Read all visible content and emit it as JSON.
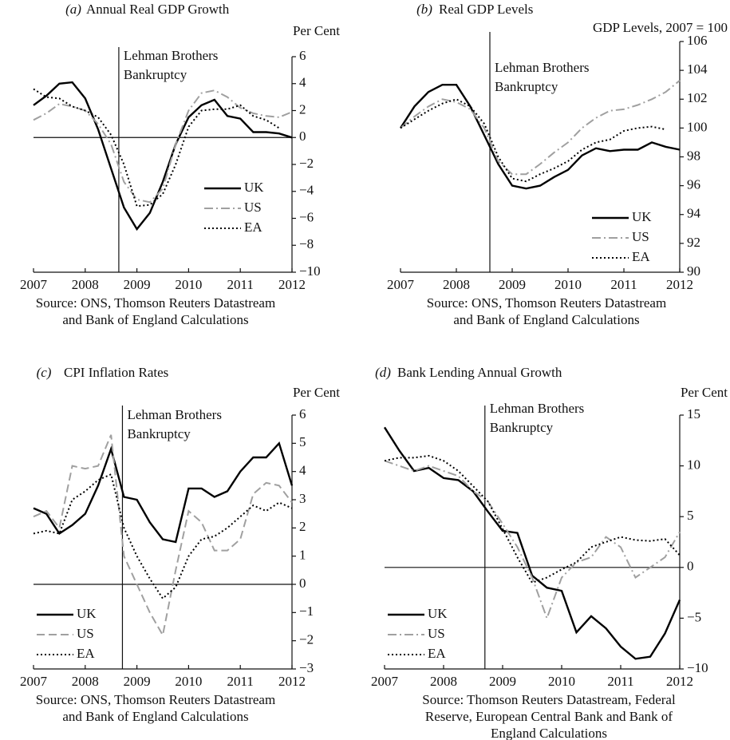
{
  "chart_data": [
    {
      "type": "line",
      "panel": "(a)",
      "title": "Annual Real GDP Growth",
      "y_label": "Per Cent",
      "annotation": [
        "Lehman Brothers",
        "Bankruptcy"
      ],
      "event_x": 2008.65,
      "source": [
        "Source: ONS, Thomson Reuters Datastream",
        "and Bank of England Calculations"
      ],
      "x": [
        2007,
        2007.25,
        2007.5,
        2007.75,
        2008,
        2008.25,
        2008.5,
        2008.75,
        2009,
        2009.25,
        2009.5,
        2009.75,
        2010,
        2010.25,
        2010.5,
        2010.75,
        2011,
        2011.25,
        2011.5,
        2011.75,
        2012
      ],
      "xlim": [
        2007,
        2012
      ],
      "xticks": [
        2007,
        2008,
        2009,
        2010,
        2011,
        2012
      ],
      "ylim": [
        -10,
        6
      ],
      "yticks": [
        6,
        4,
        2,
        0,
        {
          "value": -2,
          "label": "−2"
        },
        {
          "value": -4,
          "label": "−4"
        },
        {
          "value": -6,
          "label": "−6"
        },
        {
          "value": -8,
          "label": "−8"
        },
        {
          "value": -10,
          "label": "−10"
        }
      ],
      "legend": "center right",
      "series": [
        {
          "name": "UK",
          "color": "#000000",
          "dash": "solid",
          "values": [
            2.4,
            3.1,
            4.0,
            4.1,
            2.9,
            0.6,
            -2.3,
            -5.2,
            -6.8,
            -5.6,
            -3.3,
            -0.5,
            1.5,
            2.4,
            2.8,
            1.6,
            1.4,
            0.4,
            0.4,
            0.3,
            0.0
          ]
        },
        {
          "name": "US",
          "color": "#a0a0a0",
          "dash": "dashdot",
          "values": [
            1.3,
            1.8,
            2.5,
            2.3,
            2.0,
            1.0,
            -0.5,
            -3.3,
            -4.6,
            -4.8,
            -3.8,
            -0.5,
            2.0,
            3.3,
            3.5,
            3.0,
            2.2,
            1.8,
            1.6,
            1.5,
            1.9
          ]
        },
        {
          "name": "EA",
          "color": "#000000",
          "dash": "dotted",
          "values": [
            3.6,
            3.0,
            2.9,
            2.3,
            2.0,
            1.5,
            0.2,
            -2.0,
            -5.1,
            -5.0,
            -4.2,
            -2.0,
            0.8,
            2.0,
            2.1,
            2.1,
            2.4,
            1.6,
            1.3,
            0.7,
            null
          ]
        }
      ]
    },
    {
      "type": "line",
      "panel": "(b)",
      "title": "Real GDP Levels",
      "y_label": "GDP Levels, 2007 = 100",
      "annotation": [
        "Lehman Brothers",
        "Bankruptcy"
      ],
      "event_x": 2008.6,
      "source": [
        "Source: ONS, Thomson Reuters Datastream",
        "and Bank of England Calculations"
      ],
      "x": [
        2007,
        2007.25,
        2007.5,
        2007.75,
        2008,
        2008.25,
        2008.5,
        2008.75,
        2009,
        2009.25,
        2009.5,
        2009.75,
        2010,
        2010.25,
        2010.5,
        2010.75,
        2011,
        2011.25,
        2011.5,
        2011.75,
        2012
      ],
      "xlim": [
        2007,
        2012
      ],
      "xticks": [
        2007,
        2008,
        2009,
        2010,
        2011,
        2012
      ],
      "ylim": [
        90,
        106
      ],
      "yticks": [
        106,
        104,
        102,
        100,
        98,
        96,
        94,
        92,
        90
      ],
      "legend": "lower right",
      "series": [
        {
          "name": "UK",
          "color": "#000000",
          "dash": "solid",
          "values": [
            100,
            101.5,
            102.5,
            103,
            103,
            101.5,
            99.5,
            97.5,
            96,
            95.8,
            96,
            96.6,
            97.1,
            98.1,
            98.6,
            98.4,
            98.5,
            98.5,
            99.0,
            98.7,
            98.5
          ]
        },
        {
          "name": "US",
          "color": "#a0a0a0",
          "dash": "dashdot",
          "values": [
            100,
            100.8,
            101.5,
            102,
            101.8,
            101.3,
            100,
            97.7,
            96.8,
            96.8,
            97.5,
            98.3,
            99,
            100,
            100.7,
            101.2,
            101.3,
            101.6,
            102,
            102.5,
            103.3
          ]
        },
        {
          "name": "EA",
          "color": "#000000",
          "dash": "dotted",
          "values": [
            100,
            100.6,
            101.2,
            101.7,
            102,
            101.5,
            100.3,
            98,
            96.5,
            96.3,
            96.8,
            97.2,
            97.7,
            98.5,
            99,
            99.2,
            99.8,
            100,
            100.1,
            99.9,
            null
          ]
        }
      ]
    },
    {
      "type": "line",
      "panel": "(c)",
      "title": "CPI Inflation Rates",
      "y_label": "Per Cent",
      "annotation": [
        "Lehman Brothers",
        "Bankruptcy"
      ],
      "event_x": 2008.72,
      "source": [
        "Source: ONS, Thomson Reuters Datastream",
        "and Bank of England Calculations"
      ],
      "x": [
        2007,
        2007.25,
        2007.5,
        2007.75,
        2008,
        2008.25,
        2008.5,
        2008.75,
        2009,
        2009.25,
        2009.5,
        2009.75,
        2010,
        2010.25,
        2010.5,
        2010.75,
        2011,
        2011.25,
        2011.5,
        2011.75,
        2012
      ],
      "xlim": [
        2007,
        2012
      ],
      "xticks": [
        2007,
        2008,
        2009,
        2010,
        2011,
        2012
      ],
      "ylim": [
        -3,
        6
      ],
      "yticks": [
        6,
        5,
        4,
        3,
        2,
        1,
        0,
        {
          "value": -1,
          "label": "−1"
        },
        {
          "value": -2,
          "label": "−2"
        },
        {
          "value": -3,
          "label": "−3"
        }
      ],
      "legend": "lower left",
      "series": [
        {
          "name": "UK",
          "color": "#000000",
          "dash": "solid",
          "values": [
            2.7,
            2.5,
            1.8,
            2.1,
            2.5,
            3.5,
            4.8,
            3.1,
            3.0,
            2.2,
            1.6,
            1.5,
            3.4,
            3.4,
            3.1,
            3.3,
            4.0,
            4.5,
            4.5,
            5.0,
            3.5
          ]
        },
        {
          "name": "US",
          "color": "#a0a0a0",
          "dash": "dashed",
          "values": [
            2.4,
            2.6,
            2.0,
            4.2,
            4.1,
            4.2,
            5.3,
            1.0,
            0.0,
            -1.0,
            -1.8,
            0.5,
            2.6,
            2.2,
            1.2,
            1.2,
            1.6,
            3.2,
            3.6,
            3.5,
            2.9
          ]
        },
        {
          "name": "EA",
          "color": "#000000",
          "dash": "dotted",
          "values": [
            1.8,
            1.9,
            1.8,
            3.0,
            3.3,
            3.7,
            3.9,
            2.0,
            1.0,
            0.2,
            -0.5,
            -0.1,
            1.0,
            1.6,
            1.7,
            2.0,
            2.4,
            2.8,
            2.6,
            2.9,
            2.7
          ]
        }
      ]
    },
    {
      "type": "line",
      "panel": "(d)",
      "title": "Bank Lending Annual Growth",
      "y_label": "Per Cent",
      "annotation": [
        "Lehman Brothers",
        "Bankruptcy"
      ],
      "event_x": 2008.7,
      "source": [
        "Source:  Thomson Reuters Datastream, Federal",
        "Reserve, European Central Bank and Bank of",
        "England Calculations"
      ],
      "x": [
        2007,
        2007.25,
        2007.5,
        2007.75,
        2008,
        2008.25,
        2008.5,
        2008.75,
        2009,
        2009.25,
        2009.5,
        2009.75,
        2010,
        2010.25,
        2010.5,
        2010.75,
        2011,
        2011.25,
        2011.5,
        2011.75,
        2012
      ],
      "xlim": [
        2007,
        2012
      ],
      "xticks": [
        2007,
        2008,
        2009,
        2010,
        2011,
        2012
      ],
      "ylim": [
        -10,
        15
      ],
      "yticks": [
        15,
        10,
        5,
        0,
        {
          "value": -5,
          "label": "−5"
        },
        {
          "value": -10,
          "label": "−10"
        }
      ],
      "legend": "lower left",
      "series": [
        {
          "name": "UK",
          "color": "#000000",
          "dash": "solid",
          "values": [
            13.8,
            11.5,
            9.5,
            9.8,
            8.8,
            8.6,
            7.5,
            5.5,
            3.6,
            3.4,
            -0.8,
            -2.0,
            -2.3,
            -6.4,
            -4.8,
            -6.0,
            -7.8,
            -9.0,
            -8.8,
            -6.5,
            -3.2
          ]
        },
        {
          "name": "US",
          "color": "#a0a0a0",
          "dash": "dashdot",
          "values": [
            10.5,
            10,
            9.5,
            10,
            9.5,
            9,
            7.5,
            6.5,
            4.3,
            2.0,
            -1.0,
            -5.0,
            -1.0,
            0.5,
            1.0,
            3.0,
            2.0,
            -1.0,
            0.0,
            1.0,
            3.5
          ]
        },
        {
          "name": "EA",
          "color": "#000000",
          "dash": "dotted",
          "values": [
            10.5,
            10.8,
            10.8,
            11.0,
            10.5,
            9.5,
            8.0,
            6.5,
            3.8,
            1.0,
            -1.5,
            -1.0,
            -0.2,
            0.5,
            2.0,
            2.5,
            3.0,
            2.7,
            2.6,
            2.8,
            1.2
          ]
        }
      ]
    }
  ]
}
